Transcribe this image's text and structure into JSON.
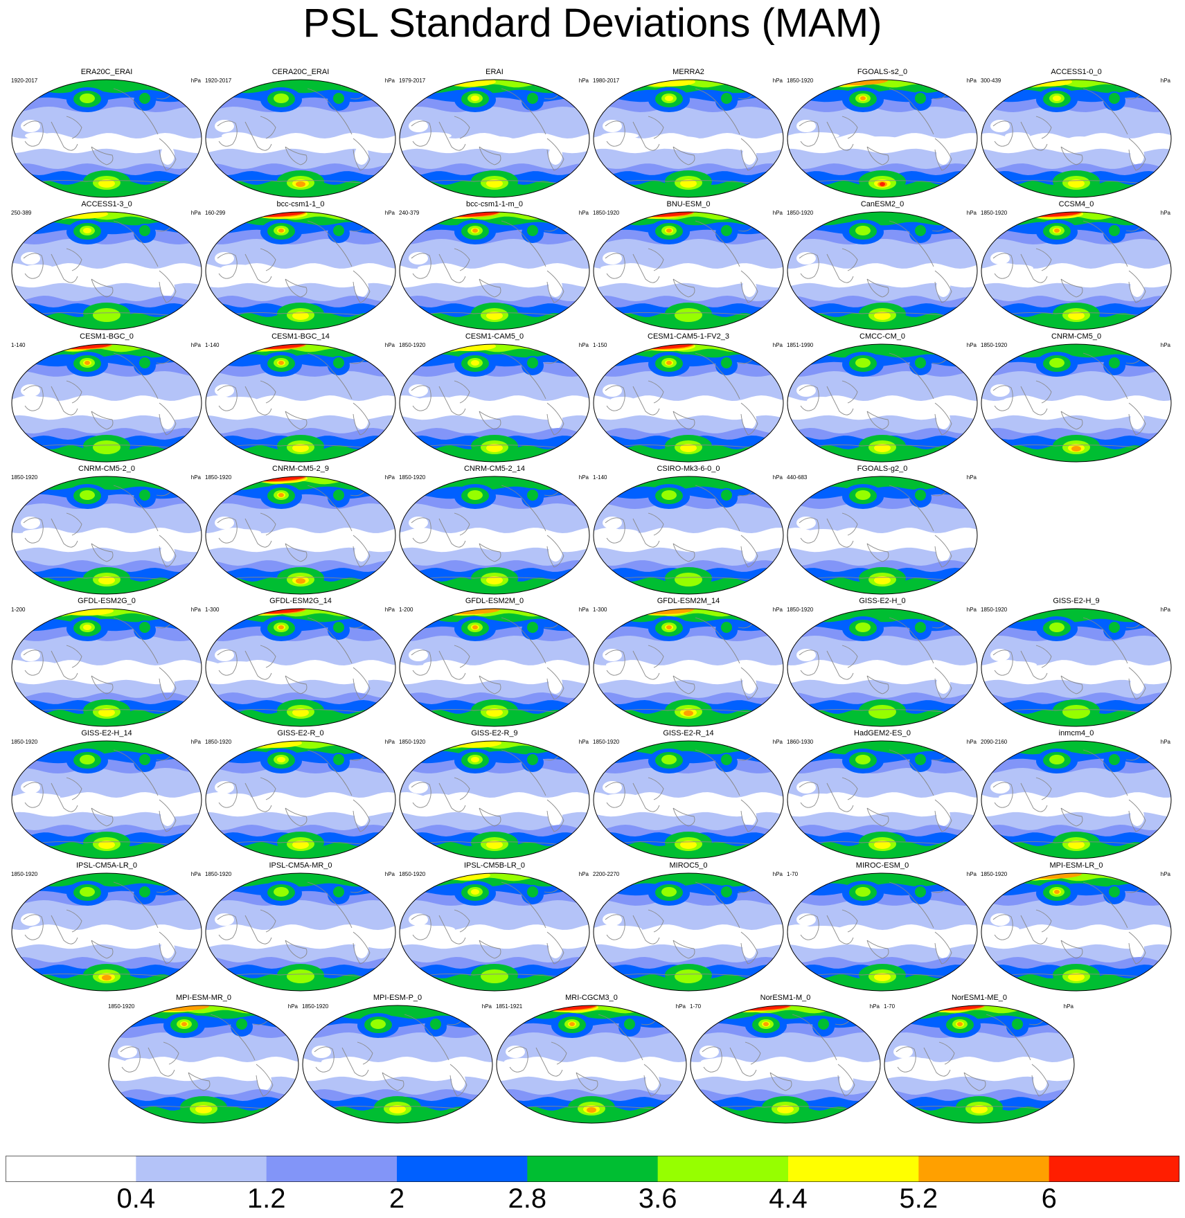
{
  "chart_data": {
    "type": "heatmap",
    "title": "PSL Standard Deviations (MAM)",
    "units": "hPa",
    "colorbar": {
      "colors": [
        "#ffffff",
        "#b4c3f8",
        "#8295f8",
        "#0060ff",
        "#00be32",
        "#96ff00",
        "#ffff00",
        "#ffa000",
        "#ff1e00"
      ],
      "labels": [
        "0.4",
        "1.2",
        "2",
        "2.8",
        "3.6",
        "4.4",
        "5.2",
        "6"
      ]
    },
    "panels": [
      {
        "name": "ERA20C_ERAI",
        "years": "1920-2017",
        "np": 2,
        "sp": 3,
        "it": 0
      },
      {
        "name": "CERA20C_ERAI",
        "years": "1920-2017",
        "np": 2,
        "sp": 4,
        "it": 0
      },
      {
        "name": "ERAI",
        "years": "1979-2017",
        "np": 3,
        "sp": 3,
        "it": 0
      },
      {
        "name": "MERRA2",
        "years": "1980-2017",
        "np": 3,
        "sp": 3,
        "it": 0
      },
      {
        "name": "FGOALS-s2_0",
        "years": "1850-1920",
        "np": 4,
        "sp": 5,
        "it": 0
      },
      {
        "name": "ACCESS1-0_0",
        "years": "300-439",
        "np": 3,
        "sp": 3,
        "it": 0
      },
      {
        "name": "ACCESS1-3_0",
        "years": "250-389",
        "np": 3,
        "sp": 2,
        "it": 1
      },
      {
        "name": "bcc-csm1-1_0",
        "years": "160-299",
        "np": 5,
        "sp": 3,
        "it": 1
      },
      {
        "name": "bcc-csm1-1-m_0",
        "years": "240-379",
        "np": 5,
        "sp": 3,
        "it": 1
      },
      {
        "name": "BNU-ESM_0",
        "years": "1850-1920",
        "np": 5,
        "sp": 2,
        "it": 1
      },
      {
        "name": "CanESM2_0",
        "years": "1850-1920",
        "np": 2,
        "sp": 3,
        "it": 1
      },
      {
        "name": "CCSM4_0",
        "years": "1850-1920",
        "np": 5,
        "sp": 3,
        "it": 1
      },
      {
        "name": "CESM1-BGC_0",
        "years": "1-140",
        "np": 5,
        "sp": 2,
        "it": 1
      },
      {
        "name": "CESM1-BGC_14",
        "years": "1-140",
        "np": 5,
        "sp": 3,
        "it": 1
      },
      {
        "name": "CESM1-CAM5_0",
        "years": "1850-1920",
        "np": 3,
        "sp": 3,
        "it": 1
      },
      {
        "name": "CESM1-CAM5-1-FV2_3",
        "years": "1-150",
        "np": 5,
        "sp": 3,
        "it": 1
      },
      {
        "name": "CMCC-CM_0",
        "years": "1851-1990",
        "np": 2,
        "sp": 3,
        "it": 1
      },
      {
        "name": "CNRM-CM5_0",
        "years": "1850-1920",
        "np": 2,
        "sp": 4,
        "it": 1
      },
      {
        "name": "CNRM-CM5-2_0",
        "years": "1850-1920",
        "np": 2,
        "sp": 3,
        "it": 1
      },
      {
        "name": "CNRM-CM5-2_9",
        "years": "1850-1920",
        "np": 5,
        "sp": 4,
        "it": 1
      },
      {
        "name": "CNRM-CM5-2_14",
        "years": "1850-1920",
        "np": 2,
        "sp": 3,
        "it": 1
      },
      {
        "name": "CSIRO-Mk3-6-0_0",
        "years": "1-140",
        "np": 2,
        "sp": 2,
        "it": 1
      },
      {
        "name": "FGOALS-g2_0",
        "years": "440-683",
        "np": 2,
        "sp": 3,
        "it": 1
      },
      {
        "name": "GFDL-ESM2G_0",
        "years": "1-200",
        "np": 3,
        "sp": 3,
        "it": 1
      },
      {
        "name": "GFDL-ESM2G_14",
        "years": "1-300",
        "np": 5,
        "sp": 3,
        "it": 1
      },
      {
        "name": "GFDL-ESM2M_0",
        "years": "1-200",
        "np": 4,
        "sp": 3,
        "it": 1
      },
      {
        "name": "GFDL-ESM2M_14",
        "years": "1-300",
        "np": 4,
        "sp": 4,
        "it": 1
      },
      {
        "name": "GISS-E2-H_0",
        "years": "1850-1920",
        "np": 2,
        "sp": 2,
        "it": 1
      },
      {
        "name": "GISS-E2-H_9",
        "years": "1850-1920",
        "np": 2,
        "sp": 2,
        "it": 1
      },
      {
        "name": "GISS-E2-H_14",
        "years": "1850-1920",
        "np": 2,
        "sp": 3,
        "it": 1
      },
      {
        "name": "GISS-E2-R_0",
        "years": "1850-1920",
        "np": 3,
        "sp": 3,
        "it": 1
      },
      {
        "name": "GISS-E2-R_9",
        "years": "1850-1920",
        "np": 3,
        "sp": 3,
        "it": 1
      },
      {
        "name": "GISS-E2-R_14",
        "years": "1850-1920",
        "np": 2,
        "sp": 3,
        "it": 1
      },
      {
        "name": "HadGEM2-ES_0",
        "years": "1860-1930",
        "np": 2,
        "sp": 3,
        "it": 1
      },
      {
        "name": "inmcm4_0",
        "years": "2090-2160",
        "np": 2,
        "sp": 3,
        "it": 1
      },
      {
        "name": "IPSL-CM5A-LR_0",
        "years": "1850-1920",
        "np": 2,
        "sp": 4,
        "it": 1
      },
      {
        "name": "IPSL-CM5A-MR_0",
        "years": "1850-1920",
        "np": 2,
        "sp": 2,
        "it": 1
      },
      {
        "name": "IPSL-CM5B-LR_0",
        "years": "1850-1920",
        "np": 3,
        "sp": 2,
        "it": 1
      },
      {
        "name": "MIROC5_0",
        "years": "2200-2270",
        "np": 2,
        "sp": 2,
        "it": 1
      },
      {
        "name": "MIROC-ESM_0",
        "years": "1-70",
        "np": 2,
        "sp": 3,
        "it": 1
      },
      {
        "name": "MPI-ESM-LR_0",
        "years": "1850-1920",
        "np": 4,
        "sp": 3,
        "it": 1
      },
      {
        "name": "MPI-ESM-MR_0",
        "years": "1850-1920",
        "np": 4,
        "sp": 3,
        "it": 1
      },
      {
        "name": "MPI-ESM-P_0",
        "years": "1850-1920",
        "np": 2,
        "sp": 3,
        "it": 1
      },
      {
        "name": "MRI-CGCM3_0",
        "years": "1851-1921",
        "np": 5,
        "sp": 4,
        "it": 1
      },
      {
        "name": "NorESM1-M_0",
        "years": "1-70",
        "np": 5,
        "sp": 3,
        "it": 1
      },
      {
        "name": "NorESM1-ME_0",
        "years": "1-70",
        "np": 5,
        "sp": 3,
        "it": 1
      }
    ]
  }
}
